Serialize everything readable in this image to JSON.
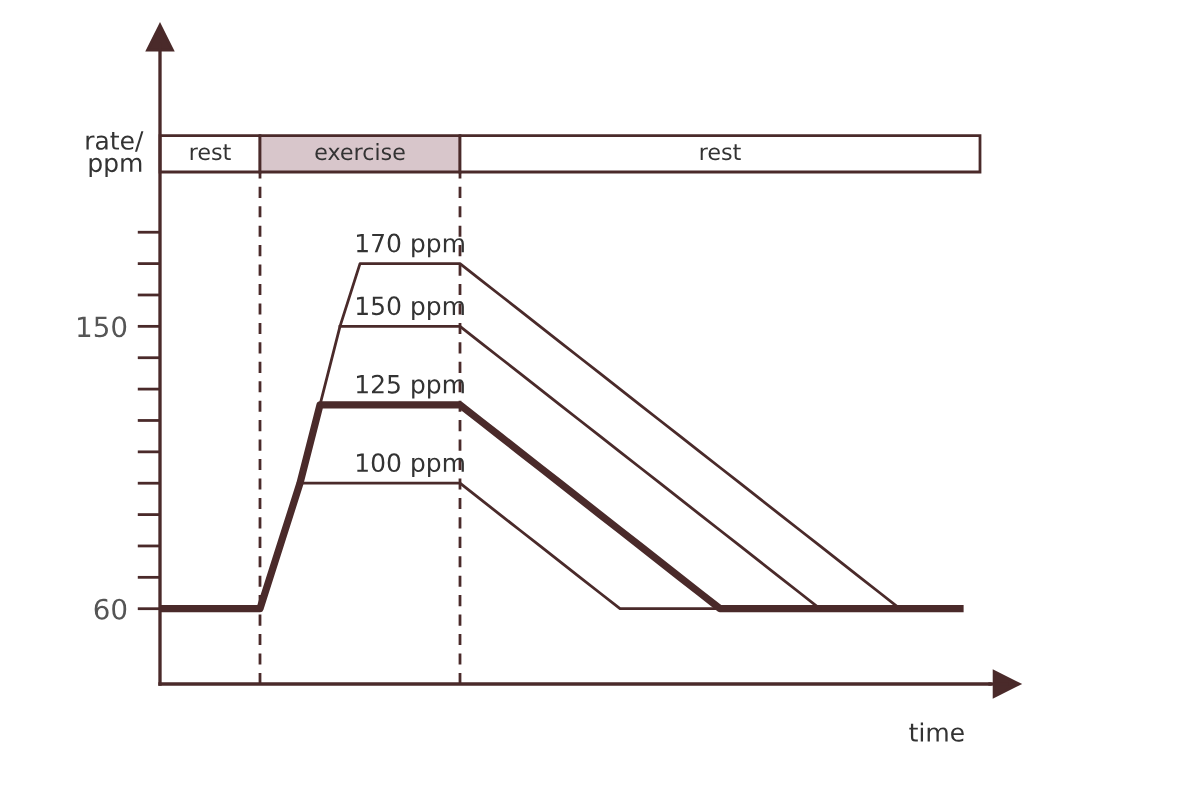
{
  "chart_data": {
    "type": "line",
    "ylabel": "rate/\nppm",
    "xlabel": "time",
    "categories": [
      null,
      null,
      null,
      null,
      null,
      null,
      null,
      null,
      null,
      null,
      null,
      null,
      null,
      null,
      null,
      null,
      null,
      null,
      null,
      null,
      null,
      null,
      null,
      null,
      null,
      null,
      null,
      null,
      null,
      null,
      null,
      null,
      null,
      null,
      null,
      null,
      null,
      null,
      null,
      null,
      null,
      null
    ],
    "ylim": [
      36,
      240
    ],
    "yticks": [
      60,
      {
        "value": 70,
        "label": null
      },
      {
        "value": 80,
        "label": null
      },
      {
        "value": 90,
        "label": null
      },
      {
        "value": 100,
        "label": null
      },
      {
        "value": 110,
        "label": null
      },
      {
        "value": 120,
        "label": null
      },
      {
        "value": 130,
        "label": null
      },
      {
        "value": 140,
        "label": null
      },
      150,
      {
        "value": 160,
        "label": null
      },
      {
        "value": 170,
        "label": null
      },
      {
        "value": 180,
        "label": null
      }
    ],
    "tick_labels": "y",
    "legend": false,
    "marker": "none",
    "line_style": "solid",
    "series": [
      {
        "name": "125 ppm",
        "color": "#4a2a2a",
        "values": [
          60,
          60,
          60,
          60,
          60,
          60,
          80,
          100,
          125,
          125,
          125,
          125,
          125,
          125,
          125,
          125,
          120,
          115,
          110,
          105,
          100,
          95,
          90,
          85,
          80,
          75,
          70,
          65,
          60,
          60,
          60,
          60,
          60,
          60,
          60,
          60,
          60,
          60,
          60,
          60,
          60,
          null
        ]
      },
      {
        "name": "100 ppm",
        "color": "#4a2a2a",
        "values": [
          null,
          null,
          null,
          null,
          null,
          null,
          null,
          100,
          100,
          100,
          100,
          100,
          100,
          100,
          100,
          100,
          95,
          90,
          85,
          80,
          75,
          70,
          65,
          60,
          60,
          60,
          60,
          60,
          60,
          null,
          null,
          null,
          null,
          null,
          null,
          null,
          null,
          null,
          null,
          null,
          null,
          null
        ]
      },
      {
        "name": "150 ppm",
        "color": "#4a2a2a",
        "values": [
          null,
          null,
          null,
          null,
          null,
          null,
          null,
          null,
          null,
          150,
          150,
          150,
          150,
          150,
          150,
          150,
          145,
          140,
          135,
          130,
          125,
          120,
          115,
          110,
          105,
          100,
          95,
          90,
          85,
          80,
          75,
          70,
          65,
          60,
          null,
          null,
          null,
          null,
          null,
          null,
          null,
          null
        ]
      },
      {
        "name": "170 ppm",
        "color": "#4a2a2a",
        "values": [
          null,
          null,
          null,
          null,
          null,
          null,
          null,
          null,
          125,
          150,
          170,
          170,
          170,
          170,
          170,
          170,
          165,
          160,
          155,
          150,
          145,
          140,
          135,
          130,
          125,
          120,
          115,
          110,
          105,
          100,
          95,
          90,
          85,
          80,
          75,
          70,
          65,
          60,
          null,
          null,
          null,
          null
        ]
      }
    ],
    "annotations": [
      "rest",
      "exercise",
      "rest"
    ]
  }
}
